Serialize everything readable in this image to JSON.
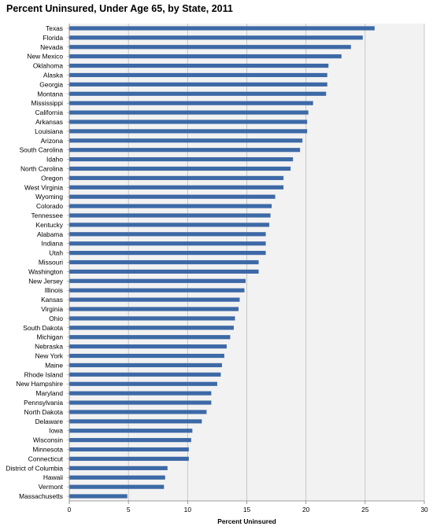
{
  "chart_data": {
    "type": "bar",
    "orientation": "horizontal",
    "title": "Percent Uninsured, Under Age 65, by State, 2011",
    "xlabel": "Percent Uninsured",
    "ylabel": "",
    "xlim": [
      0,
      30
    ],
    "xticks": [
      "0",
      "5",
      "10",
      "15",
      "20",
      "25",
      "30"
    ],
    "grid": "vertical",
    "bar_color": "#3d69a6",
    "plot_background": "#f2f2f2",
    "categories": [
      "Texas",
      "Florida",
      "Nevada",
      "New Mexico",
      "Oklahoma",
      "Alaska",
      "Georgia",
      "Montana",
      "Mississippi",
      "California",
      "Arkansas",
      "Louisiana",
      "Arizona",
      "South Carolina",
      "Idaho",
      "North Carolina",
      "Oregon",
      "West Virginia",
      "Wyoming",
      "Colorado",
      "Tennessee",
      "Kentucky",
      "Alabama",
      "Indiana",
      "Utah",
      "Missouri",
      "Washington",
      "New Jersey",
      "Illinois",
      "Kansas",
      "Virginia",
      "Ohio",
      "South Dakota",
      "Michigan",
      "Nebraska",
      "New York",
      "Maine",
      "Rhode Island",
      "New Hampshire",
      "Maryland",
      "Pennsylvania",
      "North Dakota",
      "Delaware",
      "Iowa",
      "Wisconsin",
      "Minnesota",
      "Connecticut",
      "District of Columbia",
      "Hawaii",
      "Vermont",
      "Massachusetts"
    ],
    "values": [
      25.8,
      24.8,
      23.8,
      23.0,
      21.9,
      21.8,
      21.8,
      21.7,
      20.6,
      20.2,
      20.1,
      20.1,
      19.7,
      19.5,
      18.9,
      18.7,
      18.1,
      18.1,
      17.4,
      17.1,
      17.0,
      16.9,
      16.6,
      16.6,
      16.6,
      16.0,
      16.0,
      14.9,
      14.8,
      14.4,
      14.3,
      14.0,
      13.9,
      13.6,
      13.3,
      13.1,
      12.9,
      12.8,
      12.5,
      12.0,
      12.0,
      11.6,
      11.2,
      10.4,
      10.3,
      10.1,
      10.1,
      8.3,
      8.1,
      8.0,
      4.9
    ]
  }
}
